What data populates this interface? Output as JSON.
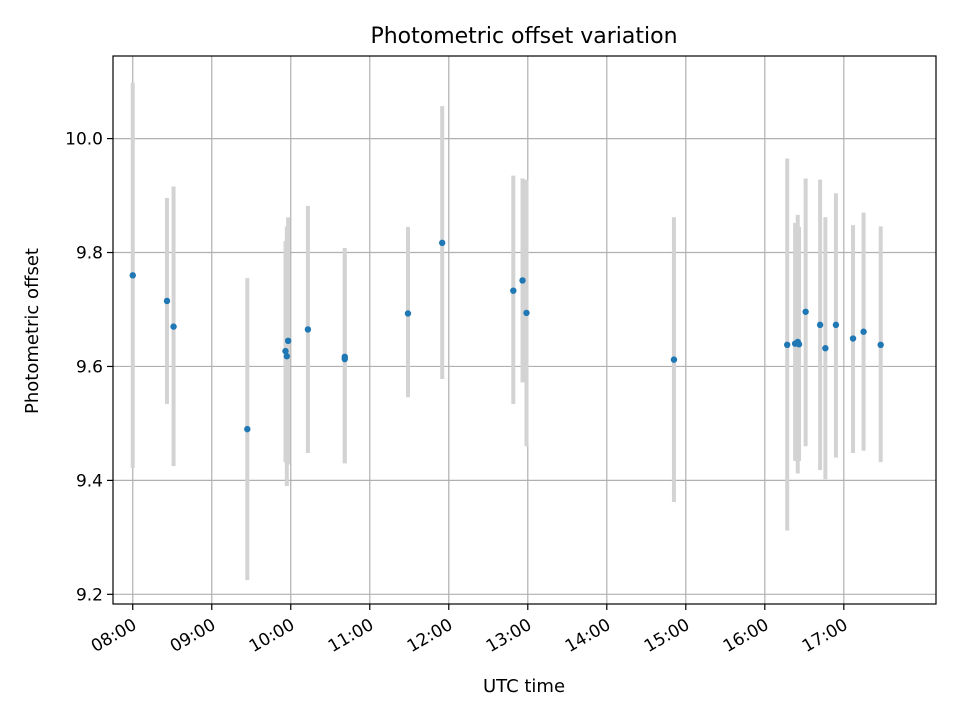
{
  "chart_data": {
    "type": "scatter",
    "title": "Photometric offset variation",
    "xlabel": "UTC time",
    "ylabel": "Photometric offset",
    "x_type": "time-of-day",
    "xlim": [
      "07:45",
      "18:10"
    ],
    "ylim": [
      9.183,
      10.145
    ],
    "grid": true,
    "x_ticks": [
      "08:00",
      "09:00",
      "10:00",
      "11:00",
      "12:00",
      "13:00",
      "14:00",
      "15:00",
      "16:00",
      "17:00"
    ],
    "y_ticks": [
      "9.2",
      "9.4",
      "9.6",
      "9.8",
      "10.0"
    ],
    "marker_color": "#1f77b4",
    "errorbar_color": "#d3d3d3",
    "series": [
      {
        "points": [
          {
            "x": "08:00",
            "y": 9.76,
            "ylo": 9.422,
            "yhi": 10.098
          },
          {
            "x": "08:26",
            "y": 9.715,
            "ylo": 9.534,
            "yhi": 9.896
          },
          {
            "x": "08:31",
            "y": 9.67,
            "ylo": 9.425,
            "yhi": 9.916
          },
          {
            "x": "09:27",
            "y": 9.49,
            "ylo": 9.225,
            "yhi": 9.755
          },
          {
            "x": "09:56",
            "y": 9.627,
            "ylo": 9.432,
            "yhi": 9.82
          },
          {
            "x": "09:57",
            "y": 9.618,
            "ylo": 9.39,
            "yhi": 9.846
          },
          {
            "x": "09:58",
            "y": 9.645,
            "ylo": 9.428,
            "yhi": 9.862
          },
          {
            "x": "10:13",
            "y": 9.665,
            "ylo": 9.448,
            "yhi": 9.882
          },
          {
            "x": "10:41",
            "y": 9.617,
            "ylo": 9.43,
            "yhi": 9.808
          },
          {
            "x": "10:41",
            "y": 9.613,
            "ylo": 9.43,
            "yhi": 9.796
          },
          {
            "x": "11:29",
            "y": 9.693,
            "ylo": 9.546,
            "yhi": 9.845
          },
          {
            "x": "11:55",
            "y": 9.817,
            "ylo": 9.578,
            "yhi": 10.057
          },
          {
            "x": "12:49",
            "y": 9.733,
            "ylo": 9.534,
            "yhi": 9.935
          },
          {
            "x": "12:56",
            "y": 9.751,
            "ylo": 9.572,
            "yhi": 9.93
          },
          {
            "x": "12:59",
            "y": 9.694,
            "ylo": 9.46,
            "yhi": 9.928
          },
          {
            "x": "14:51",
            "y": 9.612,
            "ylo": 9.362,
            "yhi": 9.862
          },
          {
            "x": "16:17",
            "y": 9.638,
            "ylo": 9.312,
            "yhi": 9.965
          },
          {
            "x": "16:23",
            "y": 9.64,
            "ylo": 9.434,
            "yhi": 9.852
          },
          {
            "x": "16:25",
            "y": 9.643,
            "ylo": 9.412,
            "yhi": 9.866
          },
          {
            "x": "16:26",
            "y": 9.639,
            "ylo": 9.434,
            "yhi": 9.845
          },
          {
            "x": "16:31",
            "y": 9.696,
            "ylo": 9.46,
            "yhi": 9.93
          },
          {
            "x": "16:42",
            "y": 9.673,
            "ylo": 9.418,
            "yhi": 9.928
          },
          {
            "x": "16:46",
            "y": 9.632,
            "ylo": 9.402,
            "yhi": 9.862
          },
          {
            "x": "16:54",
            "y": 9.673,
            "ylo": 9.44,
            "yhi": 9.904
          },
          {
            "x": "17:07",
            "y": 9.649,
            "ylo": 9.448,
            "yhi": 9.848
          },
          {
            "x": "17:15",
            "y": 9.661,
            "ylo": 9.452,
            "yhi": 9.87
          },
          {
            "x": "17:28",
            "y": 9.638,
            "ylo": 9.432,
            "yhi": 9.846
          }
        ]
      }
    ]
  }
}
